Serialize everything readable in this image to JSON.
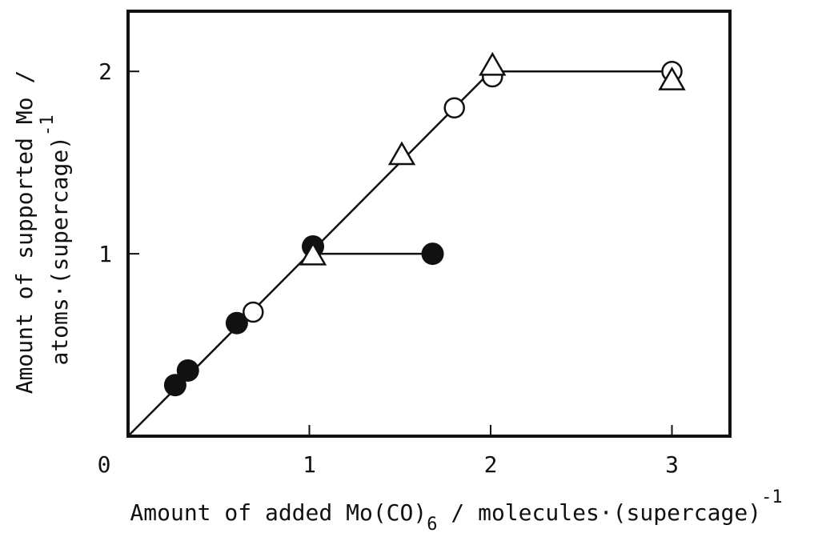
{
  "chart_data": {
    "type": "scatter",
    "x_label": [
      "Amount of added Mo(CO)",
      "6",
      " / molecules·(supercage)",
      "-1"
    ],
    "y_label": [
      "Amount of supported Mo /",
      "atoms·(supercage)",
      "-1"
    ],
    "xlim": [
      0,
      3.32
    ],
    "ylim": [
      0,
      2.33
    ],
    "xticks": [
      0,
      1,
      2,
      3
    ],
    "yticks": [
      1,
      2
    ],
    "series": [
      {
        "marker": "line",
        "color": "#111111",
        "x": [
          0,
          2,
          3
        ],
        "values": [
          0,
          2,
          2
        ]
      },
      {
        "marker": "line",
        "color": "#111111",
        "x": [
          1.02,
          1.68
        ],
        "values": [
          1.0,
          1.0
        ]
      },
      {
        "marker": "filled-circle",
        "color": "#111111",
        "x": [
          0.26,
          0.33,
          0.6,
          1.02,
          1.68
        ],
        "values": [
          0.28,
          0.36,
          0.62,
          1.04,
          1.0
        ]
      },
      {
        "marker": "open-circle",
        "color": "#111111",
        "x": [
          0.69,
          1.8,
          2.01,
          3.0
        ],
        "values": [
          0.68,
          1.8,
          1.97,
          2.0
        ]
      },
      {
        "marker": "triangle",
        "color": "#111111",
        "x": [
          1.02,
          1.51,
          2.01,
          3.0
        ],
        "values": [
          0.99,
          1.54,
          2.03,
          1.95
        ]
      }
    ]
  }
}
